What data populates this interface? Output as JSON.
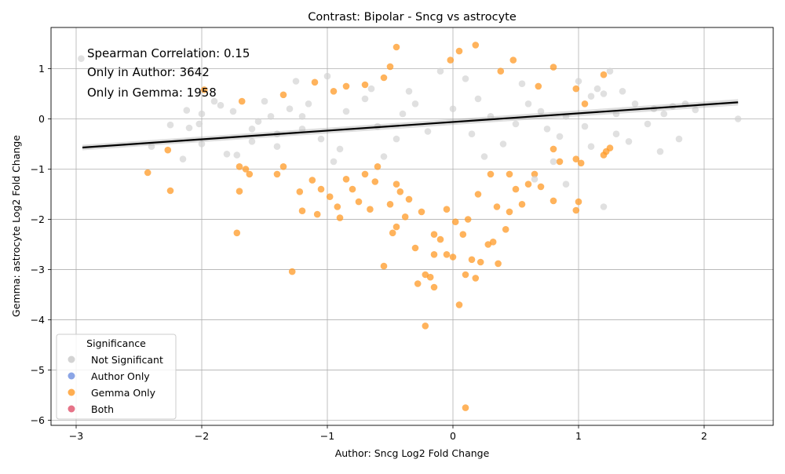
{
  "chart_data": {
    "type": "scatter",
    "title": "Contrast: Bipolar - Sncg vs astrocyte",
    "xlabel": "Author: Sncg Log2 Fold Change",
    "ylabel": "Gemma: astrocyte Log2 Fold Change",
    "xlim": [
      -3.2,
      2.55
    ],
    "ylim": [
      -6.1,
      1.82
    ],
    "x_ticks": [
      -3,
      -2,
      -1,
      0,
      1,
      2
    ],
    "y_ticks": [
      -6,
      -5,
      -4,
      -3,
      -2,
      -1,
      0,
      1
    ],
    "x_tick_labels": [
      "−3",
      "−2",
      "−1",
      "0",
      "1",
      "2"
    ],
    "y_tick_labels": [
      "−6",
      "−5",
      "−4",
      "−3",
      "−2",
      "−1",
      "0",
      "1"
    ],
    "grid": true,
    "annotations": [
      "Spearman Correlation: 0.15",
      "Only in Author: 3642",
      "Only in Gemma: 1958"
    ],
    "legend": {
      "title": "Significance",
      "placement": "lower-left",
      "entries": [
        {
          "label": "Not Significant",
          "color": "#d3d3d3"
        },
        {
          "label": "Author Only",
          "color": "#6e8fe0"
        },
        {
          "label": "Gemma Only",
          "color": "#ff9a26"
        },
        {
          "label": "Both",
          "color": "#e0506a"
        }
      ]
    },
    "regression_line": {
      "x": [
        -2.95,
        2.27
      ],
      "y": [
        -0.57,
        0.33
      ],
      "color": "#000000"
    },
    "series": [
      {
        "name": "Gemma Only",
        "color": "#ff9a26",
        "points": [
          [
            -2.25,
            -1.43
          ],
          [
            -2.27,
            -0.62
          ],
          [
            -2.43,
            -1.07
          ],
          [
            -1.72,
            -2.27
          ],
          [
            -1.7,
            -1.44
          ],
          [
            -1.7,
            -0.95
          ],
          [
            -1.65,
            -1.0
          ],
          [
            -1.62,
            -1.1
          ],
          [
            -1.68,
            0.35
          ],
          [
            -1.98,
            0.58
          ],
          [
            -1.28,
            -3.04
          ],
          [
            -1.4,
            -1.1
          ],
          [
            -1.35,
            -0.95
          ],
          [
            -1.22,
            -1.45
          ],
          [
            -1.2,
            -1.83
          ],
          [
            -1.12,
            -1.22
          ],
          [
            -1.08,
            -1.9
          ],
          [
            -1.05,
            -1.4
          ],
          [
            -1.1,
            0.73
          ],
          [
            -0.98,
            -1.55
          ],
          [
            -0.92,
            -1.75
          ],
          [
            -0.9,
            -1.97
          ],
          [
            -0.85,
            -1.2
          ],
          [
            -0.8,
            -1.4
          ],
          [
            -0.75,
            -1.65
          ],
          [
            -0.7,
            -1.1
          ],
          [
            -0.66,
            -1.8
          ],
          [
            -0.62,
            -1.25
          ],
          [
            -0.55,
            -2.93
          ],
          [
            -0.5,
            -1.7
          ],
          [
            -0.48,
            -2.27
          ],
          [
            -0.45,
            -2.15
          ],
          [
            -0.42,
            -1.45
          ],
          [
            -0.38,
            -1.95
          ],
          [
            -0.3,
            -2.57
          ],
          [
            -0.28,
            -3.28
          ],
          [
            -0.22,
            -3.1
          ],
          [
            -0.18,
            -3.15
          ],
          [
            -0.15,
            -3.35
          ],
          [
            -0.22,
            -4.12
          ],
          [
            -0.15,
            -2.7
          ],
          [
            -0.1,
            -2.4
          ],
          [
            -0.05,
            -2.7
          ],
          [
            0.0,
            -2.75
          ],
          [
            0.05,
            -3.7
          ],
          [
            0.08,
            -2.3
          ],
          [
            0.1,
            -3.1
          ],
          [
            0.15,
            -2.8
          ],
          [
            0.18,
            -3.17
          ],
          [
            0.22,
            -2.85
          ],
          [
            0.28,
            -2.5
          ],
          [
            0.32,
            -2.45
          ],
          [
            0.36,
            -2.88
          ],
          [
            0.42,
            -2.2
          ],
          [
            0.45,
            -1.85
          ],
          [
            0.5,
            -1.4
          ],
          [
            0.55,
            -1.7
          ],
          [
            0.6,
            -1.3
          ],
          [
            0.65,
            -1.1
          ],
          [
            0.7,
            -1.35
          ],
          [
            0.8,
            -1.63
          ],
          [
            0.8,
            -0.6
          ],
          [
            0.85,
            -0.85
          ],
          [
            0.98,
            -1.82
          ],
          [
            1.0,
            -1.65
          ],
          [
            1.02,
            -0.88
          ],
          [
            0.98,
            -0.8
          ],
          [
            1.05,
            0.3
          ],
          [
            1.2,
            -0.72
          ],
          [
            1.22,
            -0.65
          ],
          [
            1.25,
            -0.58
          ],
          [
            1.2,
            0.88
          ],
          [
            0.98,
            0.6
          ],
          [
            0.8,
            1.03
          ],
          [
            0.68,
            0.65
          ],
          [
            0.48,
            1.17
          ],
          [
            0.38,
            0.95
          ],
          [
            0.18,
            1.47
          ],
          [
            0.05,
            1.35
          ],
          [
            -0.02,
            1.17
          ],
          [
            -0.45,
            1.43
          ],
          [
            -0.5,
            1.04
          ],
          [
            -0.55,
            0.82
          ],
          [
            -0.7,
            0.68
          ],
          [
            -0.85,
            0.65
          ],
          [
            -0.95,
            0.55
          ],
          [
            -1.35,
            0.48
          ],
          [
            0.1,
            -5.75
          ],
          [
            0.12,
            -2.0
          ],
          [
            -0.35,
            -1.6
          ],
          [
            -0.6,
            -0.95
          ],
          [
            0.3,
            -1.1
          ],
          [
            -0.25,
            -1.85
          ],
          [
            0.2,
            -1.5
          ],
          [
            0.45,
            -1.1
          ],
          [
            -0.15,
            -2.3
          ],
          [
            0.02,
            -2.05
          ],
          [
            -0.45,
            -1.3
          ],
          [
            0.35,
            -1.75
          ],
          [
            -0.05,
            -1.8
          ]
        ]
      },
      {
        "name": "Not Significant",
        "color": "#d3d3d3",
        "points": [
          [
            -2.96,
            1.2
          ],
          [
            -2.4,
            -0.55
          ],
          [
            -2.25,
            -0.12
          ],
          [
            -2.15,
            -0.8
          ],
          [
            -2.12,
            0.17
          ],
          [
            -2.1,
            -0.18
          ],
          [
            -2.0,
            -0.5
          ],
          [
            -2.0,
            0.1
          ],
          [
            -2.02,
            -0.1
          ],
          [
            -1.9,
            0.35
          ],
          [
            -1.85,
            0.27
          ],
          [
            -1.8,
            -0.7
          ],
          [
            -1.75,
            0.15
          ],
          [
            -1.72,
            -0.72
          ],
          [
            -1.6,
            -0.2
          ],
          [
            -1.55,
            -0.05
          ],
          [
            -1.5,
            0.35
          ],
          [
            -1.45,
            0.05
          ],
          [
            -1.4,
            -0.3
          ],
          [
            -1.3,
            0.2
          ],
          [
            -1.25,
            0.75
          ],
          [
            -1.2,
            -0.2
          ],
          [
            -1.15,
            0.3
          ],
          [
            -1.0,
            0.85
          ],
          [
            1.0,
            0.75
          ],
          [
            1.1,
            0.45
          ],
          [
            1.15,
            0.6
          ],
          [
            1.2,
            0.5
          ],
          [
            1.25,
            0.95
          ],
          [
            1.3,
            0.1
          ],
          [
            1.35,
            0.55
          ],
          [
            1.4,
            -0.45
          ],
          [
            1.45,
            0.3
          ],
          [
            1.55,
            -0.1
          ],
          [
            1.6,
            0.2
          ],
          [
            1.65,
            -0.65
          ],
          [
            1.68,
            0.1
          ],
          [
            1.75,
            0.25
          ],
          [
            1.8,
            -0.4
          ],
          [
            1.85,
            0.3
          ],
          [
            1.93,
            0.18
          ],
          [
            2.27,
            0.0
          ],
          [
            1.2,
            -1.75
          ],
          [
            0.9,
            -1.3
          ],
          [
            0.65,
            -1.2
          ],
          [
            0.85,
            -0.35
          ],
          [
            1.1,
            -0.55
          ],
          [
            1.3,
            -0.3
          ],
          [
            -0.9,
            -0.6
          ],
          [
            -0.7,
            0.4
          ],
          [
            -0.45,
            -0.4
          ],
          [
            -0.3,
            0.3
          ],
          [
            0.2,
            0.4
          ],
          [
            0.4,
            -0.5
          ],
          [
            0.6,
            0.3
          ],
          [
            0.75,
            -0.2
          ],
          [
            -1.05,
            -0.4
          ],
          [
            -0.85,
            0.15
          ],
          [
            -0.6,
            -0.15
          ],
          [
            -0.4,
            0.1
          ],
          [
            -0.2,
            -0.25
          ],
          [
            0.0,
            0.2
          ],
          [
            0.15,
            -0.3
          ],
          [
            0.3,
            0.05
          ],
          [
            0.5,
            -0.1
          ],
          [
            0.7,
            0.15
          ],
          [
            0.9,
            0.05
          ],
          [
            -1.2,
            0.05
          ],
          [
            -1.4,
            -0.55
          ],
          [
            -1.6,
            -0.45
          ],
          [
            -0.95,
            -0.85
          ],
          [
            -0.65,
            0.6
          ],
          [
            -0.35,
            0.55
          ],
          [
            0.1,
            0.8
          ],
          [
            0.55,
            0.7
          ],
          [
            0.8,
            -0.85
          ],
          [
            -0.1,
            0.95
          ],
          [
            -0.55,
            -0.75
          ],
          [
            0.25,
            -0.75
          ],
          [
            1.05,
            -0.15
          ]
        ]
      }
    ]
  }
}
